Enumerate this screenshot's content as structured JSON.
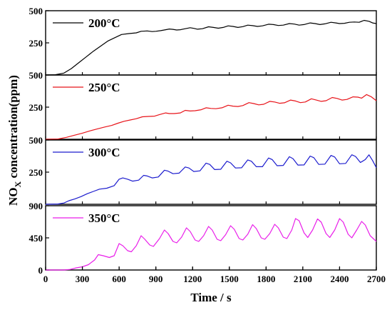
{
  "chart_data": {
    "type": "line",
    "xlabel": "Time / s",
    "ylabel_main": "NO",
    "ylabel_sub": "X",
    "ylabel_rest": " concentration(ppm)",
    "xlim": [
      0,
      2700
    ],
    "x_ticks": [
      0,
      300,
      600,
      900,
      1200,
      1500,
      1800,
      2100,
      2400,
      2700
    ],
    "panels": [
      {
        "name": "200°C",
        "color": "#000000",
        "ylim": [
          0,
          500
        ],
        "y_ticks": [
          {
            "v": 250,
            "label": "250"
          },
          {
            "v": 500,
            "label": "500"
          }
        ],
        "points": [
          [
            0,
            0
          ],
          [
            80,
            2
          ],
          [
            150,
            15
          ],
          [
            210,
            50
          ],
          [
            270,
            95
          ],
          [
            330,
            140
          ],
          [
            390,
            185
          ],
          [
            450,
            225
          ],
          [
            510,
            265
          ],
          [
            560,
            288
          ],
          [
            620,
            315
          ],
          [
            680,
            322
          ],
          [
            740,
            328
          ],
          [
            780,
            340
          ],
          [
            830,
            343
          ],
          [
            870,
            338
          ],
          [
            900,
            340
          ],
          [
            940,
            345
          ],
          [
            980,
            352
          ],
          [
            1010,
            358
          ],
          [
            1040,
            355
          ],
          [
            1070,
            350
          ],
          [
            1100,
            352
          ],
          [
            1140,
            360
          ],
          [
            1180,
            368
          ],
          [
            1210,
            363
          ],
          [
            1240,
            356
          ],
          [
            1280,
            360
          ],
          [
            1330,
            375
          ],
          [
            1370,
            370
          ],
          [
            1410,
            364
          ],
          [
            1450,
            370
          ],
          [
            1490,
            382
          ],
          [
            1530,
            378
          ],
          [
            1570,
            370
          ],
          [
            1610,
            376
          ],
          [
            1650,
            388
          ],
          [
            1690,
            384
          ],
          [
            1730,
            378
          ],
          [
            1770,
            382
          ],
          [
            1820,
            395
          ],
          [
            1860,
            392
          ],
          [
            1900,
            385
          ],
          [
            1940,
            388
          ],
          [
            1990,
            400
          ],
          [
            2030,
            396
          ],
          [
            2070,
            388
          ],
          [
            2110,
            392
          ],
          [
            2160,
            405
          ],
          [
            2200,
            400
          ],
          [
            2240,
            392
          ],
          [
            2280,
            398
          ],
          [
            2330,
            410
          ],
          [
            2370,
            405
          ],
          [
            2400,
            400
          ],
          [
            2440,
            402
          ],
          [
            2480,
            410
          ],
          [
            2520,
            412
          ],
          [
            2560,
            410
          ],
          [
            2600,
            425
          ],
          [
            2640,
            418
          ],
          [
            2670,
            405
          ],
          [
            2700,
            400
          ]
        ]
      },
      {
        "name": "250°C",
        "color": "#e8141a",
        "ylim": [
          0,
          500
        ],
        "y_ticks": [
          {
            "v": 250,
            "label": "250"
          },
          {
            "v": 500,
            "label": "500"
          }
        ],
        "points": [
          [
            0,
            0
          ],
          [
            100,
            2
          ],
          [
            170,
            15
          ],
          [
            230,
            30
          ],
          [
            300,
            48
          ],
          [
            360,
            65
          ],
          [
            420,
            80
          ],
          [
            480,
            95
          ],
          [
            540,
            108
          ],
          [
            590,
            125
          ],
          [
            640,
            140
          ],
          [
            690,
            150
          ],
          [
            740,
            160
          ],
          [
            790,
            175
          ],
          [
            840,
            178
          ],
          [
            890,
            180
          ],
          [
            930,
            192
          ],
          [
            980,
            205
          ],
          [
            1010,
            200
          ],
          [
            1050,
            200
          ],
          [
            1100,
            205
          ],
          [
            1140,
            225
          ],
          [
            1180,
            220
          ],
          [
            1220,
            222
          ],
          [
            1270,
            230
          ],
          [
            1310,
            245
          ],
          [
            1350,
            240
          ],
          [
            1390,
            238
          ],
          [
            1440,
            245
          ],
          [
            1490,
            265
          ],
          [
            1530,
            258
          ],
          [
            1570,
            255
          ],
          [
            1610,
            262
          ],
          [
            1660,
            285
          ],
          [
            1700,
            278
          ],
          [
            1740,
            268
          ],
          [
            1780,
            272
          ],
          [
            1830,
            295
          ],
          [
            1870,
            290
          ],
          [
            1910,
            280
          ],
          [
            1950,
            284
          ],
          [
            2000,
            305
          ],
          [
            2040,
            298
          ],
          [
            2080,
            285
          ],
          [
            2120,
            290
          ],
          [
            2170,
            315
          ],
          [
            2210,
            305
          ],
          [
            2250,
            295
          ],
          [
            2290,
            300
          ],
          [
            2340,
            325
          ],
          [
            2380,
            318
          ],
          [
            2420,
            305
          ],
          [
            2460,
            310
          ],
          [
            2510,
            330
          ],
          [
            2550,
            328
          ],
          [
            2580,
            320
          ],
          [
            2620,
            348
          ],
          [
            2660,
            330
          ],
          [
            2700,
            300
          ]
        ]
      },
      {
        "name": "300°C",
        "color": "#1c1cce",
        "ylim": [
          0,
          500
        ],
        "y_ticks": [
          {
            "v": 250,
            "label": "250"
          },
          {
            "v": 500,
            "label": "500"
          }
        ],
        "points": [
          [
            0,
            0
          ],
          [
            100,
            2
          ],
          [
            150,
            10
          ],
          [
            190,
            28
          ],
          [
            240,
            42
          ],
          [
            290,
            60
          ],
          [
            340,
            82
          ],
          [
            390,
            100
          ],
          [
            440,
            118
          ],
          [
            500,
            125
          ],
          [
            560,
            145
          ],
          [
            600,
            195
          ],
          [
            630,
            205
          ],
          [
            670,
            195
          ],
          [
            710,
            180
          ],
          [
            760,
            188
          ],
          [
            800,
            225
          ],
          [
            830,
            220
          ],
          [
            870,
            205
          ],
          [
            920,
            212
          ],
          [
            970,
            265
          ],
          [
            1000,
            258
          ],
          [
            1040,
            238
          ],
          [
            1090,
            242
          ],
          [
            1140,
            290
          ],
          [
            1170,
            282
          ],
          [
            1210,
            255
          ],
          [
            1260,
            260
          ],
          [
            1310,
            320
          ],
          [
            1340,
            310
          ],
          [
            1380,
            270
          ],
          [
            1430,
            272
          ],
          [
            1480,
            335
          ],
          [
            1510,
            322
          ],
          [
            1550,
            282
          ],
          [
            1600,
            284
          ],
          [
            1650,
            345
          ],
          [
            1680,
            335
          ],
          [
            1720,
            292
          ],
          [
            1770,
            292
          ],
          [
            1820,
            360
          ],
          [
            1850,
            348
          ],
          [
            1890,
            300
          ],
          [
            1940,
            302
          ],
          [
            1990,
            370
          ],
          [
            2020,
            355
          ],
          [
            2060,
            305
          ],
          [
            2110,
            306
          ],
          [
            2160,
            375
          ],
          [
            2190,
            362
          ],
          [
            2230,
            310
          ],
          [
            2280,
            312
          ],
          [
            2330,
            380
          ],
          [
            2360,
            368
          ],
          [
            2400,
            315
          ],
          [
            2450,
            318
          ],
          [
            2500,
            385
          ],
          [
            2530,
            372
          ],
          [
            2570,
            325
          ],
          [
            2610,
            348
          ],
          [
            2640,
            385
          ],
          [
            2670,
            340
          ],
          [
            2700,
            285
          ]
        ]
      },
      {
        "name": "350°C",
        "color": "#e91ee9",
        "ylim": [
          0,
          900
        ],
        "y_ticks": [
          {
            "v": 0,
            "label": "0"
          },
          {
            "v": 450,
            "label": "450"
          },
          {
            "v": 900,
            "label": "900"
          }
        ],
        "points": [
          [
            0,
            0
          ],
          [
            150,
            0
          ],
          [
            200,
            8
          ],
          [
            250,
            30
          ],
          [
            300,
            45
          ],
          [
            350,
            75
          ],
          [
            400,
            140
          ],
          [
            430,
            215
          ],
          [
            470,
            200
          ],
          [
            520,
            175
          ],
          [
            560,
            200
          ],
          [
            600,
            370
          ],
          [
            630,
            340
          ],
          [
            670,
            270
          ],
          [
            700,
            255
          ],
          [
            740,
            340
          ],
          [
            780,
            480
          ],
          [
            810,
            430
          ],
          [
            850,
            350
          ],
          [
            880,
            330
          ],
          [
            930,
            440
          ],
          [
            970,
            560
          ],
          [
            1000,
            510
          ],
          [
            1040,
            400
          ],
          [
            1070,
            380
          ],
          [
            1110,
            460
          ],
          [
            1150,
            590
          ],
          [
            1180,
            540
          ],
          [
            1220,
            420
          ],
          [
            1250,
            400
          ],
          [
            1290,
            480
          ],
          [
            1330,
            610
          ],
          [
            1360,
            560
          ],
          [
            1400,
            430
          ],
          [
            1430,
            410
          ],
          [
            1470,
            495
          ],
          [
            1510,
            620
          ],
          [
            1540,
            570
          ],
          [
            1580,
            440
          ],
          [
            1610,
            420
          ],
          [
            1650,
            500
          ],
          [
            1690,
            635
          ],
          [
            1720,
            580
          ],
          [
            1760,
            450
          ],
          [
            1790,
            430
          ],
          [
            1830,
            510
          ],
          [
            1870,
            640
          ],
          [
            1900,
            590
          ],
          [
            1940,
            460
          ],
          [
            1970,
            440
          ],
          [
            2010,
            560
          ],
          [
            2040,
            720
          ],
          [
            2070,
            690
          ],
          [
            2110,
            520
          ],
          [
            2140,
            455
          ],
          [
            2180,
            560
          ],
          [
            2220,
            715
          ],
          [
            2250,
            670
          ],
          [
            2290,
            510
          ],
          [
            2320,
            455
          ],
          [
            2360,
            560
          ],
          [
            2400,
            720
          ],
          [
            2430,
            670
          ],
          [
            2470,
            500
          ],
          [
            2500,
            450
          ],
          [
            2540,
            560
          ],
          [
            2580,
            680
          ],
          [
            2610,
            630
          ],
          [
            2650,
            480
          ],
          [
            2700,
            400
          ]
        ]
      }
    ]
  }
}
